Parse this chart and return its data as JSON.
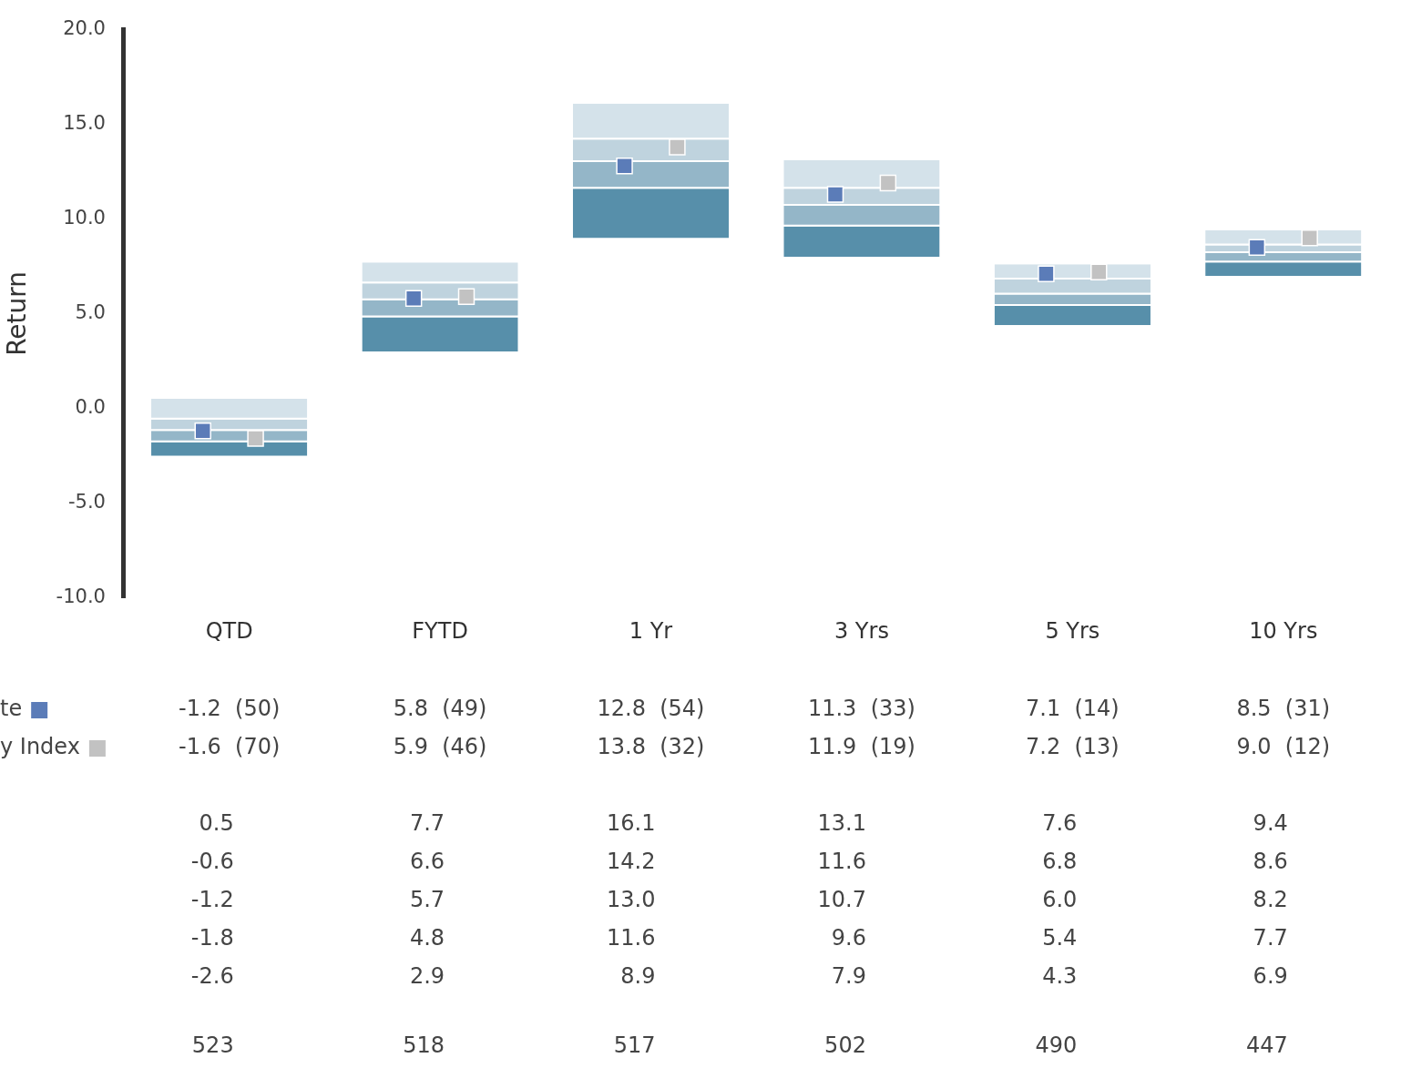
{
  "chart_data": {
    "type": "bar",
    "ylabel": "Return",
    "ylim": [
      -10,
      20
    ],
    "yticks": [
      {
        "value": -10,
        "label": "-10.0"
      },
      {
        "value": -5,
        "label": "-5.0"
      },
      {
        "value": 0,
        "label": "0.0"
      },
      {
        "value": 5,
        "label": "5.0"
      },
      {
        "value": 10,
        "label": "10.0"
      },
      {
        "value": 15,
        "label": "15.0"
      },
      {
        "value": 20,
        "label": "20.0"
      }
    ],
    "categories": [
      "QTD",
      "FYTD",
      "1 Yr",
      "3 Yrs",
      "5 Yrs",
      "10 Yrs"
    ],
    "series": [
      {
        "color": "#578faa",
        "base": [
          -2.6,
          2.9,
          8.9,
          7.9,
          4.3,
          6.9
        ],
        "values": [
          0.8,
          1.9,
          2.7,
          1.7,
          1.1,
          0.8
        ]
      },
      {
        "color": "#94b6c8",
        "base": [
          -1.8,
          4.8,
          11.6,
          9.6,
          5.4,
          7.7
        ],
        "values": [
          0.6,
          0.9,
          1.4,
          1.1,
          0.6,
          0.5
        ]
      },
      {
        "color": "#bfd3de",
        "base": [
          -1.2,
          5.7,
          13.0,
          10.7,
          6.0,
          8.2
        ],
        "values": [
          0.6,
          0.9,
          1.2,
          0.9,
          0.8,
          0.4
        ]
      },
      {
        "color": "#d4e2ea",
        "base": [
          -0.6,
          6.6,
          14.2,
          11.6,
          6.8,
          8.6
        ],
        "values": [
          1.1,
          1.1,
          1.9,
          1.5,
          0.8,
          0.8
        ]
      },
      {
        "type": "scatter",
        "name": "te",
        "color": "#5b7cb8",
        "marker": "square",
        "x": [
          "QTD",
          "FYTD",
          "1 Yr",
          "3 Yrs",
          "5 Yrs",
          "10 Yrs"
        ],
        "values": [
          -1.2,
          5.8,
          12.8,
          11.3,
          7.1,
          8.5
        ],
        "value_labels": [
          "-1.2  (50)",
          "5.8  (49)",
          "12.8  (54)",
          "11.3  (33)",
          "7.1  (14)",
          "8.5  (31)"
        ]
      },
      {
        "type": "scatter",
        "name": "y Index",
        "color": "#c2c2c2",
        "marker": "square",
        "x": [
          "QTD",
          "FYTD",
          "1 Yr",
          "3 Yrs",
          "5 Yrs",
          "10 Yrs"
        ],
        "values": [
          -1.6,
          5.9,
          13.8,
          11.9,
          7.2,
          9.0
        ],
        "value_labels": [
          "-1.6  (70)",
          "5.9  (46)",
          "13.8  (32)",
          "11.9  (19)",
          "7.2  (13)",
          "9.0  (12)"
        ]
      }
    ],
    "annotations": [
      "0.5",
      "7.7",
      "16.1",
      "13.1",
      "7.6",
      "9.4",
      "-0.6",
      "6.6",
      "14.2",
      "11.6",
      "6.8",
      "8.6",
      "-1.2",
      "5.7",
      "13.0",
      "10.7",
      "6.0",
      "8.2",
      "-1.8",
      "4.8",
      "11.6",
      "9.6",
      "5.4",
      "7.7",
      "-2.6",
      "2.9",
      "8.9",
      "7.9",
      "4.3",
      "6.9",
      "523",
      "518",
      "517",
      "502",
      "490",
      "447"
    ],
    "grid": false,
    "legend": "bottom left"
  }
}
